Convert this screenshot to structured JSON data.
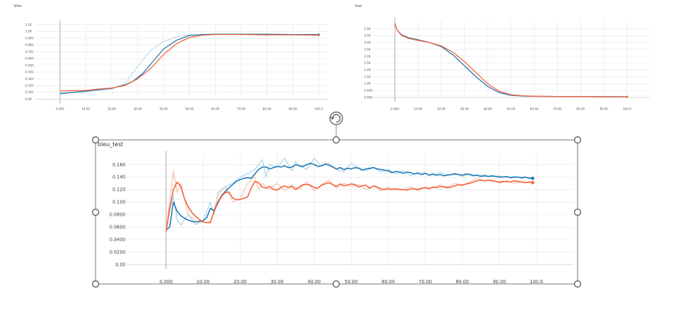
{
  "colors": {
    "blue": "#1f78b4",
    "orange": "#f4623a",
    "light_blue": "#aed6ee",
    "light_orange": "#f9c4b4"
  },
  "icons": {
    "rotate_handle": "rotate-handle-icon"
  },
  "chart_data": [
    {
      "type": "line",
      "title": "bleu",
      "ylim": [
        0,
        1.1
      ],
      "xlim": [
        0,
        100
      ],
      "y_ticks": [
        "1.10",
        "1.00",
        "0.900",
        "0.800",
        "0.700",
        "0.600",
        "0.500",
        "0.400",
        "0.300",
        "0.200",
        "0.100",
        "0.00"
      ],
      "x_ticks": [
        "0.000",
        "10.00",
        "20.00",
        "30.00",
        "40.00",
        "50.00",
        "60.00",
        "70.00",
        "80.00",
        "90.00",
        "100.0"
      ],
      "series": [
        {
          "color": "#1f78b4",
          "x": [
            0,
            5,
            10,
            15,
            20,
            25,
            28,
            32,
            36,
            40,
            45,
            50,
            55,
            60,
            70,
            80,
            90,
            100
          ],
          "y": [
            0.08,
            0.1,
            0.12,
            0.14,
            0.16,
            0.21,
            0.26,
            0.38,
            0.56,
            0.74,
            0.87,
            0.94,
            0.955,
            0.96,
            0.96,
            0.96,
            0.955,
            0.955
          ]
        },
        {
          "color": "#f4623a",
          "x": [
            0,
            5,
            10,
            15,
            20,
            25,
            30,
            35,
            40,
            45,
            50,
            55,
            60,
            70,
            80,
            90,
            100
          ],
          "y": [
            0.12,
            0.125,
            0.13,
            0.15,
            0.165,
            0.2,
            0.3,
            0.45,
            0.66,
            0.82,
            0.91,
            0.945,
            0.955,
            0.955,
            0.95,
            0.95,
            0.945
          ]
        },
        {
          "color": "#aed6ee",
          "x": [
            0,
            10,
            20,
            25,
            30,
            35,
            40,
            45,
            50,
            60,
            70,
            80,
            90,
            100
          ],
          "y": [
            0.09,
            0.11,
            0.15,
            0.23,
            0.48,
            0.72,
            0.85,
            0.92,
            0.95,
            0.96,
            0.96,
            0.95,
            0.955,
            0.95
          ]
        }
      ]
    },
    {
      "type": "line",
      "title": "loss",
      "ylim": [
        0,
        5.5
      ],
      "xlim": [
        0,
        100
      ],
      "y_ticks": [
        "5.00",
        "4.50",
        "4.00",
        "3.50",
        "3.00",
        "2.50",
        "2.00",
        "1.50",
        "1.00",
        "0.500",
        "0.000"
      ],
      "x_ticks": [
        "0.000",
        "10.00",
        "20.00",
        "30.00",
        "40.00",
        "50.00",
        "60.00",
        "70.00",
        "80.00",
        "90.00",
        "100.0"
      ],
      "series": [
        {
          "color": "#1f78b4",
          "x": [
            0,
            1,
            3,
            6,
            10,
            15,
            20,
            25,
            30,
            35,
            40,
            45,
            50,
            55,
            60,
            70,
            80,
            90,
            100
          ],
          "y": [
            5.4,
            4.9,
            4.55,
            4.35,
            4.2,
            4.0,
            3.7,
            3.1,
            2.3,
            1.5,
            0.8,
            0.35,
            0.15,
            0.1,
            0.08,
            0.07,
            0.06,
            0.06,
            0.05
          ]
        },
        {
          "color": "#f4623a",
          "x": [
            0,
            1,
            3,
            6,
            10,
            15,
            20,
            25,
            30,
            35,
            40,
            45,
            50,
            55,
            60,
            70,
            80,
            90,
            100
          ],
          "y": [
            5.4,
            4.9,
            4.5,
            4.3,
            4.15,
            4.0,
            3.75,
            3.3,
            2.6,
            1.8,
            1.0,
            0.45,
            0.2,
            0.12,
            0.09,
            0.07,
            0.06,
            0.05,
            0.05
          ]
        }
      ]
    },
    {
      "type": "line",
      "title": "bleu_test",
      "ylim": [
        0,
        0.175
      ],
      "xlim": [
        0,
        100
      ],
      "y_ticks": [
        "0.160",
        "0.140",
        "0.120",
        "0.100",
        "0.0800",
        "0.0600",
        "0.0400",
        "0.0200",
        "0.00"
      ],
      "x_ticks": [
        "0.000",
        "10.00",
        "20.00",
        "30.00",
        "40.00",
        "50.00",
        "60.00",
        "70.00",
        "80.00",
        "90.00",
        "100.0"
      ],
      "series": [
        {
          "color": "#1f78b4",
          "x": [
            0,
            1,
            2,
            3,
            4,
            5,
            6,
            7,
            8,
            9,
            10,
            11,
            12,
            13,
            14,
            15,
            16,
            17,
            18,
            19,
            20,
            21,
            22,
            23,
            24,
            25,
            26,
            27,
            28,
            29,
            30,
            31,
            32,
            33,
            34,
            35,
            36,
            37,
            38,
            39,
            40,
            41,
            42,
            43,
            44,
            45,
            46,
            47,
            48,
            49,
            50,
            51,
            52,
            53,
            54,
            55,
            56,
            57,
            58,
            59,
            60,
            61,
            62,
            63,
            64,
            65,
            66,
            67,
            68,
            69,
            70,
            71,
            72,
            73,
            74,
            75,
            76,
            77,
            78,
            79,
            80,
            81,
            82,
            83,
            84,
            85,
            86,
            87,
            88,
            89,
            90,
            91,
            92,
            93,
            94,
            95,
            96,
            97,
            98,
            99
          ],
          "y": [
            0.055,
            0.06,
            0.1,
            0.085,
            0.078,
            0.074,
            0.071,
            0.069,
            0.068,
            0.069,
            0.07,
            0.075,
            0.09,
            0.086,
            0.1,
            0.11,
            0.117,
            0.123,
            0.128,
            0.133,
            0.136,
            0.138,
            0.139,
            0.138,
            0.145,
            0.152,
            0.156,
            0.156,
            0.153,
            0.155,
            0.157,
            0.156,
            0.158,
            0.155,
            0.156,
            0.16,
            0.158,
            0.157,
            0.16,
            0.162,
            0.16,
            0.157,
            0.158,
            0.161,
            0.159,
            0.156,
            0.153,
            0.155,
            0.152,
            0.154,
            0.153,
            0.155,
            0.154,
            0.151,
            0.153,
            0.154,
            0.155,
            0.153,
            0.152,
            0.151,
            0.15,
            0.147,
            0.149,
            0.148,
            0.146,
            0.148,
            0.147,
            0.145,
            0.146,
            0.144,
            0.146,
            0.143,
            0.145,
            0.143,
            0.144,
            0.142,
            0.143,
            0.144,
            0.145,
            0.144,
            0.143,
            0.145,
            0.144,
            0.142,
            0.143,
            0.141,
            0.142,
            0.141,
            0.142,
            0.141,
            0.14,
            0.14,
            0.141,
            0.139,
            0.14,
            0.14,
            0.139,
            0.14,
            0.138,
            0.138
          ]
        },
        {
          "color": "#f4623a",
          "x": [
            0,
            1,
            2,
            3,
            4,
            5,
            6,
            7,
            8,
            9,
            10,
            11,
            12,
            13,
            14,
            15,
            16,
            17,
            18,
            19,
            20,
            21,
            22,
            23,
            24,
            25,
            26,
            27,
            28,
            29,
            30,
            31,
            32,
            33,
            34,
            35,
            36,
            37,
            38,
            39,
            40,
            41,
            42,
            43,
            44,
            45,
            46,
            47,
            48,
            49,
            50,
            51,
            52,
            53,
            54,
            55,
            56,
            57,
            58,
            59,
            60,
            61,
            62,
            63,
            64,
            65,
            66,
            67,
            68,
            69,
            70,
            71,
            72,
            73,
            74,
            75,
            76,
            77,
            78,
            79,
            80,
            81,
            82,
            83,
            84,
            85,
            86,
            87,
            88,
            89,
            90,
            91,
            92,
            93,
            94,
            95,
            96,
            97,
            98,
            99
          ],
          "y": [
            0.052,
            0.09,
            0.12,
            0.132,
            0.125,
            0.105,
            0.092,
            0.083,
            0.077,
            0.072,
            0.068,
            0.067,
            0.068,
            0.085,
            0.098,
            0.109,
            0.115,
            0.116,
            0.106,
            0.104,
            0.104,
            0.106,
            0.108,
            0.122,
            0.133,
            0.131,
            0.124,
            0.122,
            0.125,
            0.12,
            0.119,
            0.123,
            0.126,
            0.123,
            0.125,
            0.12,
            0.124,
            0.128,
            0.128,
            0.127,
            0.123,
            0.122,
            0.127,
            0.129,
            0.131,
            0.128,
            0.125,
            0.129,
            0.126,
            0.127,
            0.129,
            0.128,
            0.124,
            0.126,
            0.127,
            0.122,
            0.126,
            0.124,
            0.121,
            0.12,
            0.121,
            0.12,
            0.121,
            0.12,
            0.12,
            0.119,
            0.121,
            0.121,
            0.12,
            0.122,
            0.123,
            0.121,
            0.124,
            0.123,
            0.125,
            0.124,
            0.123,
            0.124,
            0.126,
            0.128,
            0.127,
            0.129,
            0.13,
            0.132,
            0.134,
            0.135,
            0.134,
            0.135,
            0.134,
            0.133,
            0.132,
            0.133,
            0.133,
            0.132,
            0.134,
            0.133,
            0.132,
            0.131,
            0.132,
            0.131
          ]
        },
        {
          "color": "#aed6ee",
          "x": [
            0,
            2,
            3,
            4,
            6,
            8,
            10,
            12,
            13,
            14,
            16,
            18,
            20,
            22,
            24,
            26,
            27,
            28,
            30,
            32,
            34,
            35,
            36,
            38,
            40,
            42,
            44,
            46,
            48,
            50,
            52,
            54,
            56,
            58,
            60,
            62,
            64,
            66,
            68,
            70,
            72,
            74,
            76,
            78,
            80,
            82,
            84,
            86,
            88,
            90,
            92,
            94,
            96,
            98,
            99
          ],
          "y": [
            0.06,
            0.11,
            0.072,
            0.063,
            0.08,
            0.064,
            0.07,
            0.1,
            0.08,
            0.115,
            0.125,
            0.13,
            0.14,
            0.145,
            0.152,
            0.168,
            0.14,
            0.16,
            0.155,
            0.17,
            0.15,
            0.165,
            0.158,
            0.152,
            0.17,
            0.158,
            0.162,
            0.152,
            0.148,
            0.162,
            0.155,
            0.15,
            0.156,
            0.148,
            0.152,
            0.145,
            0.15,
            0.142,
            0.148,
            0.146,
            0.142,
            0.148,
            0.143,
            0.146,
            0.141,
            0.145,
            0.142,
            0.144,
            0.14,
            0.142,
            0.139,
            0.141,
            0.138,
            0.14,
            0.138
          ]
        },
        {
          "color": "#f9c4b4",
          "x": [
            0,
            2,
            3,
            4,
            6,
            8,
            10,
            12,
            14,
            16,
            18,
            20,
            22,
            24,
            25,
            26,
            28,
            30,
            32,
            34,
            36,
            38,
            40,
            42,
            44,
            46,
            48,
            50,
            52,
            54,
            56,
            58,
            60,
            62,
            64,
            66,
            68,
            70,
            72,
            74,
            76,
            78,
            80,
            82,
            84,
            86,
            88,
            90,
            92,
            94,
            96,
            98,
            99
          ],
          "y": [
            0.055,
            0.15,
            0.115,
            0.13,
            0.08,
            0.07,
            0.068,
            0.066,
            0.11,
            0.125,
            0.1,
            0.105,
            0.13,
            0.14,
            0.12,
            0.13,
            0.12,
            0.13,
            0.118,
            0.128,
            0.12,
            0.132,
            0.118,
            0.128,
            0.135,
            0.122,
            0.13,
            0.125,
            0.128,
            0.12,
            0.126,
            0.118,
            0.124,
            0.12,
            0.119,
            0.125,
            0.118,
            0.124,
            0.122,
            0.128,
            0.124,
            0.13,
            0.126,
            0.132,
            0.138,
            0.134,
            0.136,
            0.13,
            0.134,
            0.13,
            0.133,
            0.131,
            0.131
          ]
        }
      ]
    }
  ]
}
